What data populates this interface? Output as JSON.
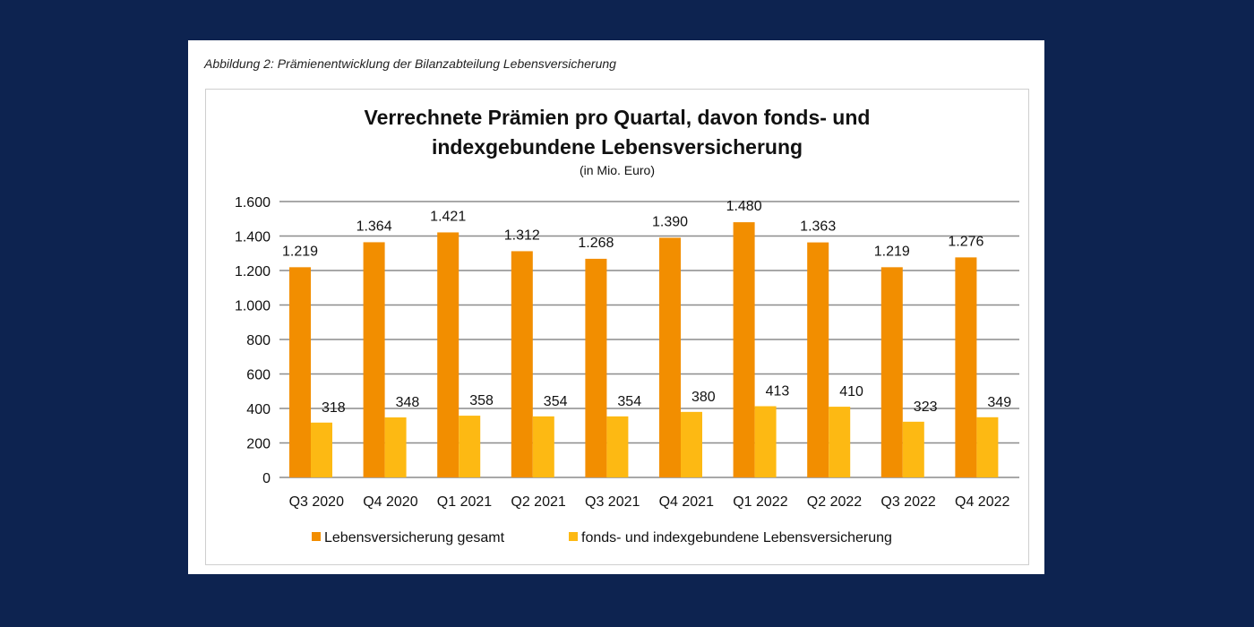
{
  "caption": "Abbildung 2: Prämienentwicklung der Bilanzabteilung Lebensversicherung",
  "colors": {
    "background": "#0d2350",
    "series_total": "#f28e00",
    "series_fonds": "#fdb913",
    "gridline": "#8c8c8c"
  },
  "chart_data": {
    "type": "bar",
    "title_lines": [
      "Verrechnete Prämien pro Quartal, davon fonds- und",
      "indexgebundene Lebensversicherung"
    ],
    "subtitle": "(in Mio. Euro)",
    "categories": [
      "Q3 2020",
      "Q4 2020",
      "Q1 2021",
      "Q2 2021",
      "Q3 2021",
      "Q4 2021",
      "Q1 2022",
      "Q2 2022",
      "Q3 2022",
      "Q4 2022"
    ],
    "series": [
      {
        "name": "Lebensversicherung gesamt",
        "values": [
          1219,
          1364,
          1421,
          1312,
          1268,
          1390,
          1480,
          1363,
          1219,
          1276
        ],
        "labels": [
          "1.219",
          "1.364",
          "1.421",
          "1.312",
          "1.268",
          "1.390",
          "1.480",
          "1.363",
          "1.219",
          "1.276"
        ]
      },
      {
        "name": "fonds- und indexgebundene Lebensversicherung",
        "values": [
          318,
          348,
          358,
          354,
          354,
          380,
          413,
          410,
          323,
          349
        ],
        "labels": [
          "318",
          "348",
          "358",
          "354",
          "354",
          "380",
          "413",
          "410",
          "323",
          "349"
        ]
      }
    ],
    "ylim": [
      0,
      1600
    ],
    "yticks": [
      0,
      200,
      400,
      600,
      800,
      1000,
      1200,
      1400,
      1600
    ],
    "ytick_labels": [
      "0",
      "200",
      "400",
      "600",
      "800",
      "1.000",
      "1.200",
      "1.400",
      "1.600"
    ],
    "grid": true,
    "legend": "bottom"
  }
}
